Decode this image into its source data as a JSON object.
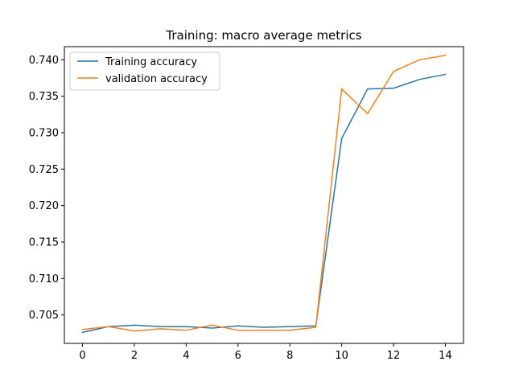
{
  "chart_data": {
    "type": "line",
    "title": "Training: macro average metrics",
    "xlabel": "",
    "ylabel": "",
    "xlim": [
      -0.7,
      14.7
    ],
    "ylim": [
      0.7011,
      0.7418
    ],
    "xticks": [
      0,
      2,
      4,
      6,
      8,
      10,
      12,
      14
    ],
    "xtick_labels": [
      "0",
      "2",
      "4",
      "6",
      "8",
      "10",
      "12",
      "14"
    ],
    "yticks": [
      0.705,
      0.71,
      0.715,
      0.72,
      0.725,
      0.73,
      0.735,
      0.74
    ],
    "ytick_labels": [
      "0.705",
      "0.710",
      "0.715",
      "0.720",
      "0.725",
      "0.730",
      "0.735",
      "0.740"
    ],
    "grid": false,
    "legend_position": "top-left",
    "x": [
      0,
      1,
      2,
      3,
      4,
      5,
      6,
      7,
      8,
      9,
      10,
      11,
      12,
      13,
      14
    ],
    "series": [
      {
        "name": "Training accuracy",
        "color": "#1f77b4",
        "values": [
          0.7026,
          0.7034,
          0.7036,
          0.7034,
          0.7034,
          0.7032,
          0.7035,
          0.7033,
          0.7034,
          0.7035,
          0.7292,
          0.736,
          0.7361,
          0.7373,
          0.738
        ]
      },
      {
        "name": "validation accuracy",
        "color": "#ff7f0e",
        "values": [
          0.703,
          0.7034,
          0.7028,
          0.7031,
          0.7029,
          0.7036,
          0.7029,
          0.7029,
          0.7029,
          0.7033,
          0.736,
          0.7326,
          0.7384,
          0.74,
          0.7406
        ]
      }
    ]
  }
}
